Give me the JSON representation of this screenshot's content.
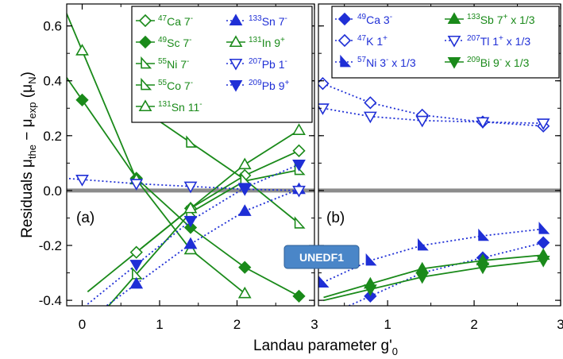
{
  "chart_data": {
    "type": "line",
    "ylabel": "Residuals μthe − μexp (μN)",
    "xlabel": "Landau parameter g'0",
    "badge": "UNEDF1",
    "ylim": [
      -0.42,
      0.68
    ],
    "yticks": [
      -0.4,
      -0.2,
      0.0,
      0.2,
      0.4,
      0.6
    ],
    "grid": false,
    "panels": [
      {
        "tag": "(a)",
        "xlim": [
          -0.2,
          3.0
        ],
        "xticks": [
          0,
          1,
          2,
          3
        ],
        "legend_placement": "top-right",
        "series": [
          {
            "nucleus": "47",
            "element": "Ca",
            "state": " 7",
            "sup_tail": "-",
            "suffix": "",
            "color": "#1a8a1a",
            "marker": "diamond",
            "filled": false,
            "dash": false,
            "x": [
              0.7,
              1.4,
              2.1,
              2.8
            ],
            "y": [
              -0.225,
              -0.065,
              0.055,
              0.145
            ]
          },
          {
            "nucleus": "49",
            "element": "Sc",
            "state": " 7",
            "sup_tail": "-",
            "suffix": "",
            "color": "#1a8a1a",
            "marker": "diamond",
            "filled": true,
            "dash": false,
            "x": [
              0.0,
              0.7,
              1.4,
              2.1,
              2.8
            ],
            "y": [
              0.33,
              0.045,
              -0.135,
              -0.28,
              -0.385
            ]
          },
          {
            "nucleus": "55",
            "element": "Ni",
            "state": " 7",
            "sup_tail": "-",
            "suffix": "",
            "color": "#1a8a1a",
            "marker": "tri-right",
            "filled": false,
            "dash": false,
            "x": [
              0.7,
              1.4,
              2.1,
              2.8
            ],
            "y": [
              -0.305,
              -0.08,
              0.035,
              0.075
            ]
          },
          {
            "nucleus": "55",
            "element": "Co",
            "state": " 7",
            "sup_tail": "-",
            "suffix": "",
            "color": "#1a8a1a",
            "marker": "tri-right",
            "filled": false,
            "dash": false,
            "x": [
              1.4,
              2.1,
              2.8
            ],
            "y": [
              0.175,
              0.04,
              -0.12
            ]
          },
          {
            "nucleus": "131",
            "element": "Sn",
            "state": " 11",
            "sup_tail": "-",
            "suffix": "",
            "color": "#1a8a1a",
            "marker": "tri-up",
            "filled": false,
            "dash": false,
            "x": [
              0.0,
              0.7,
              1.4,
              2.1
            ],
            "y": [
              0.51,
              0.04,
              -0.215,
              -0.375
            ]
          },
          {
            "nucleus": "133",
            "element": "Sn",
            "state": " 7",
            "sup_tail": "-",
            "suffix": "",
            "color": "#1f2fd6",
            "marker": "tri-up",
            "filled": true,
            "dash": true,
            "x": [
              0.7,
              1.4,
              2.1,
              2.8
            ],
            "y": [
              -0.34,
              -0.195,
              -0.075,
              0.005
            ]
          },
          {
            "nucleus": "131",
            "element": "In",
            "state": " 9",
            "sup_tail": "+",
            "suffix": "",
            "color": "#1a8a1a",
            "marker": "tri-up",
            "filled": false,
            "dash": false,
            "x": [
              1.4,
              2.1,
              2.8
            ],
            "y": [
              -0.065,
              0.095,
              0.22
            ]
          },
          {
            "nucleus": "207",
            "element": "Pb",
            "state": " 1",
            "sup_tail": "-",
            "suffix": "",
            "color": "#1f2fd6",
            "marker": "tri-down",
            "filled": false,
            "dash": true,
            "x": [
              0.0,
              0.7,
              1.4,
              2.1,
              2.8
            ],
            "y": [
              0.04,
              0.025,
              0.015,
              0.005,
              0.0
            ]
          },
          {
            "nucleus": "209",
            "element": "Pb",
            "state": " 9",
            "sup_tail": "+",
            "suffix": "",
            "color": "#1f2fd6",
            "marker": "tri-down",
            "filled": true,
            "dash": true,
            "x": [
              0.7,
              1.4,
              2.1,
              2.8
            ],
            "y": [
              -0.27,
              -0.11,
              0.01,
              0.095
            ]
          }
        ]
      },
      {
        "tag": "(b)",
        "xlim": [
          0.2,
          3.0
        ],
        "xticks": [
          1,
          2,
          3
        ],
        "legend_placement": "top",
        "series": [
          {
            "nucleus": "49",
            "element": "Ca",
            "state": " 3",
            "sup_tail": "-",
            "suffix": "",
            "color": "#1f2fd6",
            "marker": "diamond",
            "filled": true,
            "dash": true,
            "x": [
              0.8,
              1.4,
              2.1,
              2.8
            ],
            "y": [
              -0.385,
              -0.3,
              -0.245,
              -0.19
            ]
          },
          {
            "nucleus": "47",
            "element": "K",
            "state": " 1",
            "sup_tail": "+",
            "suffix": "",
            "color": "#1f2fd6",
            "marker": "diamond",
            "filled": false,
            "dash": true,
            "x": [
              0.25,
              0.8,
              1.4,
              2.1,
              2.8
            ],
            "y": [
              0.39,
              0.32,
              0.275,
              0.25,
              0.235
            ]
          },
          {
            "nucleus": "57",
            "element": "Ni",
            "state": " 3",
            "sup_tail": "-",
            "suffix": " x 1/3",
            "color": "#1f2fd6",
            "marker": "tri-right",
            "filled": true,
            "dash": true,
            "x": [
              0.25,
              0.8,
              1.4,
              2.1,
              2.8
            ],
            "y": [
              -0.335,
              -0.255,
              -0.2,
              -0.165,
              -0.14
            ]
          },
          {
            "nucleus": "133",
            "element": "Sb",
            "state": " 7",
            "sup_tail": "+",
            "suffix": " x 1/3",
            "color": "#1a8a1a",
            "marker": "tri-up",
            "filled": true,
            "dash": false,
            "x": [
              0.8,
              1.4,
              2.1,
              2.8
            ],
            "y": [
              -0.34,
              -0.285,
              -0.255,
              -0.235
            ]
          },
          {
            "nucleus": "207",
            "element": "Tl",
            "state": " 1",
            "sup_tail": "+",
            "suffix": " x 1/3",
            "color": "#1f2fd6",
            "marker": "tri-down",
            "filled": false,
            "dash": true,
            "x": [
              0.25,
              0.8,
              1.4,
              2.1,
              2.8
            ],
            "y": [
              0.3,
              0.27,
              0.255,
              0.25,
              0.245
            ]
          },
          {
            "nucleus": "209",
            "element": "Bi",
            "state": " 9",
            "sup_tail": "-",
            "suffix": " x 1/3",
            "color": "#1a8a1a",
            "marker": "tri-down",
            "filled": true,
            "dash": false,
            "x": [
              0.8,
              1.4,
              2.1,
              2.8
            ],
            "y": [
              -0.36,
              -0.315,
              -0.28,
              -0.255
            ]
          }
        ]
      }
    ]
  },
  "colors": {
    "zero_line": "#8c8c8c",
    "badge_fill": "#4a86c8",
    "badge_stroke": "#2d5f96"
  }
}
